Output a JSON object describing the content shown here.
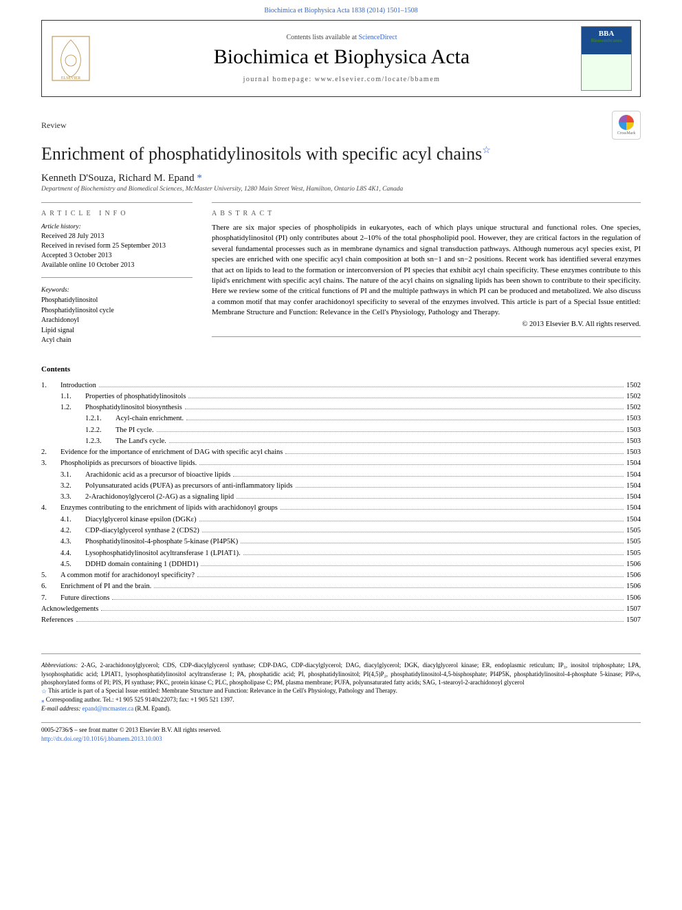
{
  "header": {
    "page_ref": "Biochimica et Biophysica Acta 1838 (2014) 1501–1508",
    "contents_line_pre": "Contents lists available at ",
    "contents_line_link": "ScienceDirect",
    "journal_title": "Biochimica et Biophysica Acta",
    "journal_homepage": "journal homepage: www.elsevier.com/locate/bbamem",
    "bba_logo_main": "BBA",
    "bba_logo_sub": "Biomembranes"
  },
  "article": {
    "type": "Review",
    "title": "Enrichment of phosphatidylinositols with specific acyl chains",
    "title_star": "☆",
    "crossmark": "CrossMark",
    "authors_pre": "Kenneth D'Souza, Richard M. Epand ",
    "corr_mark": "*",
    "affiliation": "Department of Biochemistry and Biomedical Sciences, McMaster University, 1280 Main Street West, Hamilton, Ontario L8S 4K1, Canada"
  },
  "info": {
    "heading": "article info",
    "history_label": "Article history:",
    "received": "Received 28 July 2013",
    "revised": "Received in revised form 25 September 2013",
    "accepted": "Accepted 3 October 2013",
    "online": "Available online 10 October 2013",
    "keywords_label": "Keywords:",
    "keywords": [
      "Phosphatidylinositol",
      "Phosphatidylinositol cycle",
      "Arachidonoyl",
      "Lipid signal",
      "Acyl chain"
    ]
  },
  "abstract": {
    "heading": "abstract",
    "text": "There are six major species of phospholipids in eukaryotes, each of which plays unique structural and functional roles. One species, phosphatidylinositol (PI) only contributes about 2–10% of the total phospholipid pool. However, they are critical factors in the regulation of several fundamental processes such as in membrane dynamics and signal transduction pathways. Although numerous acyl species exist, PI species are enriched with one specific acyl chain composition at both sn−1 and sn−2 positions. Recent work has identified several enzymes that act on lipids to lead to the formation or interconversion of PI species that exhibit acyl chain specificity. These enzymes contribute to this lipid's enrichment with specific acyl chains. The nature of the acyl chains on signaling lipids has been shown to contribute to their specificity. Here we review some of the critical functions of PI and the multiple pathways in which PI can be produced and metabolized. We also discuss a common motif that may confer arachidonoyl specificity to several of the enzymes involved. This article is part of a Special Issue entitled: Membrane Structure and Function: Relevance in the Cell's Physiology, Pathology and Therapy.",
    "copyright": "© 2013 Elsevier B.V. All rights reserved."
  },
  "contents": {
    "heading": "Contents",
    "items": [
      {
        "level": 0,
        "num": "1.",
        "title": "Introduction",
        "page": "1502"
      },
      {
        "level": 1,
        "num": "1.1.",
        "title": "Properties of phosphatidylinositols",
        "page": "1502"
      },
      {
        "level": 1,
        "num": "1.2.",
        "title": "Phosphatidylinositol biosynthesis",
        "page": "1502"
      },
      {
        "level": 2,
        "num": "1.2.1.",
        "title": "Acyl-chain enrichment.",
        "page": "1503"
      },
      {
        "level": 2,
        "num": "1.2.2.",
        "title": "The PI cycle.",
        "page": "1503"
      },
      {
        "level": 2,
        "num": "1.2.3.",
        "title": "The Land's cycle.",
        "page": "1503"
      },
      {
        "level": 0,
        "num": "2.",
        "title": "Evidence for the importance of enrichment of DAG with specific acyl chains",
        "page": "1503"
      },
      {
        "level": 0,
        "num": "3.",
        "title": "Phospholipids as precursors of bioactive lipids.",
        "page": "1504"
      },
      {
        "level": 1,
        "num": "3.1.",
        "title": "Arachidonic acid as a precursor of bioactive lipids",
        "page": "1504"
      },
      {
        "level": 1,
        "num": "3.2.",
        "title": "Polyunsaturated acids (PUFA) as precursors of anti-inflammatory lipids",
        "page": "1504"
      },
      {
        "level": 1,
        "num": "3.3.",
        "title": "2-Arachidonoylglycerol (2-AG) as a signaling lipid",
        "page": "1504"
      },
      {
        "level": 0,
        "num": "4.",
        "title": "Enzymes contributing to the enrichment of lipids with arachidonoyl groups",
        "page": "1504"
      },
      {
        "level": 1,
        "num": "4.1.",
        "title": "Diacylglycerol kinase epsilon (DGKε)",
        "page": "1504"
      },
      {
        "level": 1,
        "num": "4.2.",
        "title": "CDP-diacylglycerol synthase 2 (CDS2)",
        "page": "1505"
      },
      {
        "level": 1,
        "num": "4.3.",
        "title": "Phosphatidylinositol-4-phosphate 5-kinase (PI4P5K)",
        "page": "1505"
      },
      {
        "level": 1,
        "num": "4.4.",
        "title": "Lysophosphatidylinositol acyltransferase 1 (LPIAT1).",
        "page": "1505"
      },
      {
        "level": 1,
        "num": "4.5.",
        "title": "DDHD domain containing 1 (DDHD1)",
        "page": "1506"
      },
      {
        "level": 0,
        "num": "5.",
        "title": "A common motif for arachidonoyl specificity?",
        "page": "1506"
      },
      {
        "level": 0,
        "num": "6.",
        "title": "Enrichment of PI and the brain.",
        "page": "1506"
      },
      {
        "level": 0,
        "num": "7.",
        "title": "Future directions",
        "page": "1506"
      },
      {
        "level": 0,
        "num": "",
        "title": "Acknowledgements",
        "page": "1507"
      },
      {
        "level": 0,
        "num": "",
        "title": "References",
        "page": "1507"
      }
    ]
  },
  "footer": {
    "abbrev_label": "Abbreviations: ",
    "abbrev_text": "2-AG, 2-arachidonoylglycerol; CDS, CDP-diacylglycerol synthase; CDP-DAG, CDP-diacylglycerol; DAG, diacylglycerol; DGK, diacylglycerol kinase; ER, endoplasmic reticulum; IP₃, inositol triphosphate; LPA, lysophosphatidic acid; LPIAT1, lysophosphatidylinositol acyltransferase 1; PA, phosphatidic acid; PI, phosphatidylinositol; PI(4,5)P₂, phosphatidylinositol-4,5-bisphosphate; PI4P5K, phosphatidylinositol-4-phosphate 5-kinase; PIPₙs, phosphorylated forms of PI; PIS, PI synthase; PKC, protein kinase C; PLC, phospholipase C; PM, plasma membrane; PUFA, polyunsaturated fatty acids; SAG, 1-stearoyl-2-arachidonoyl glycerol",
    "special_note": "This article is part of a Special Issue entitled: Membrane Structure and Function: Relevance in the Cell's Physiology, Pathology and Therapy.",
    "corr_note": "Corresponding author. Tel.: +1 905 525 9140x22073; fax: +1 905 521 1397.",
    "email_label": "E-mail address: ",
    "email": "epand@mcmaster.ca",
    "email_suffix": " (R.M. Epand)."
  },
  "bottom": {
    "issn": "0005-2736/$ – see front matter © 2013 Elsevier B.V. All rights reserved.",
    "doi": "http://dx.doi.org/10.1016/j.bbamem.2013.10.003"
  },
  "colors": {
    "link": "#3366cc",
    "text": "#000000",
    "muted": "#555555",
    "rule": "#999999"
  }
}
